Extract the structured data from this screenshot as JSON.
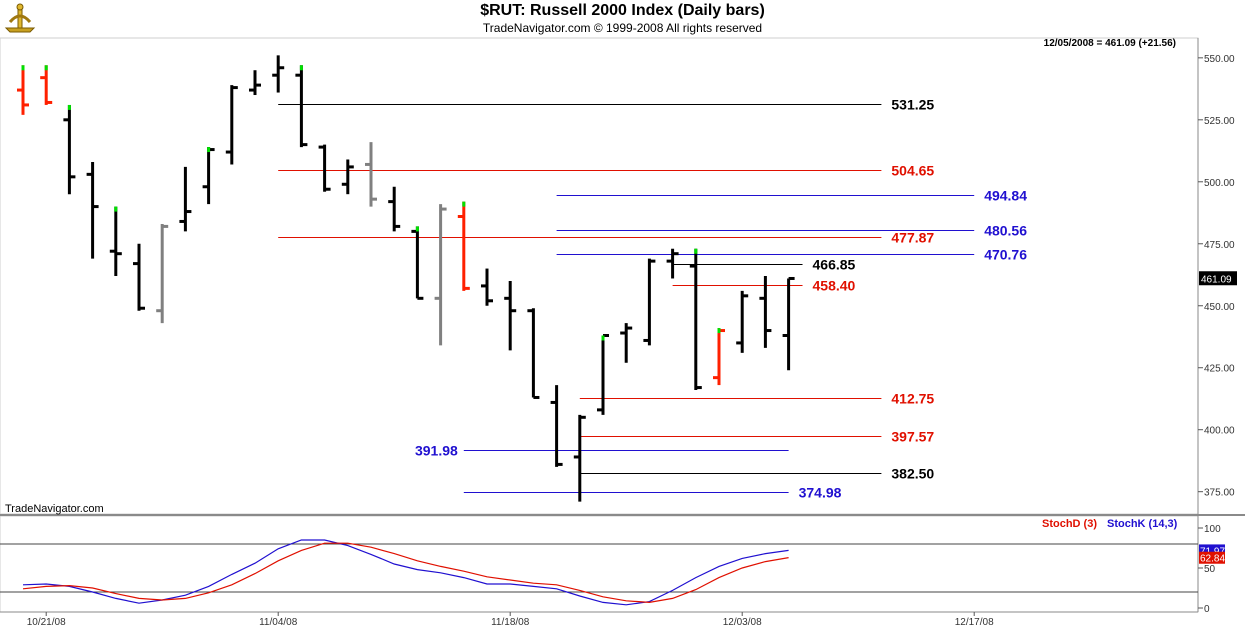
{
  "header": {
    "title": "$RUT:  Russell 2000 Index  (Daily bars)",
    "subtitle": "TradeNavigator.com © 1999-2008 All rights reserved"
  },
  "chart_data": [
    {
      "type": "ohlc",
      "readout": "12/05/2008 = 461.09 (+21.56)",
      "watermark": "TradeNavigator.com",
      "ylim": [
        366,
        558
      ],
      "y_ticks": [
        "375.00",
        "400.00",
        "425.00",
        "450.00",
        "475.00",
        "500.00",
        "525.00",
        "550.00"
      ],
      "y_tick_values": [
        375,
        400,
        425,
        450,
        475,
        500,
        525,
        550
      ],
      "last_price_label": "461.09",
      "last_price_value": 461.09,
      "colors": {
        "up": "#000000",
        "down": "#ff2000",
        "upbar_tick": "#00e000",
        "inside": "#808080",
        "blue": "#2010d0",
        "red": "#e01000",
        "black": "#000000"
      },
      "x_ticks": [
        "10/21/08",
        "11/04/08",
        "11/18/08",
        "12/03/08",
        "12/17/08"
      ],
      "x_tick_index": [
        1,
        11,
        21,
        31,
        41
      ],
      "bars": [
        {
          "i": 0,
          "o": 537,
          "h": 547,
          "l": 527,
          "c": 531,
          "color": "red",
          "tick": "green"
        },
        {
          "i": 1,
          "o": 542,
          "h": 547,
          "l": 531,
          "c": 532,
          "color": "red",
          "tick": "green"
        },
        {
          "i": 2,
          "o": 525,
          "h": 531,
          "l": 495,
          "c": 502,
          "color": "black",
          "tick": "green"
        },
        {
          "i": 3,
          "o": 503,
          "h": 508,
          "l": 469,
          "c": 490,
          "color": "black"
        },
        {
          "i": 4,
          "o": 472,
          "h": 490,
          "l": 462,
          "c": 471,
          "color": "black",
          "tick": "green"
        },
        {
          "i": 5,
          "o": 467,
          "h": 475,
          "l": 448,
          "c": 449,
          "color": "black"
        },
        {
          "i": 6,
          "o": 448,
          "h": 483,
          "l": 443,
          "c": 482,
          "color": "gray"
        },
        {
          "i": 7,
          "o": 484,
          "h": 506,
          "l": 480,
          "c": 488,
          "color": "black"
        },
        {
          "i": 8,
          "o": 498,
          "h": 514,
          "l": 491,
          "c": 513,
          "color": "black",
          "tick": "green"
        },
        {
          "i": 9,
          "o": 512,
          "h": 539,
          "l": 507,
          "c": 538,
          "color": "black"
        },
        {
          "i": 10,
          "o": 537,
          "h": 545,
          "l": 535,
          "c": 539,
          "color": "black"
        },
        {
          "i": 11,
          "o": 543,
          "h": 551,
          "l": 536,
          "c": 546,
          "color": "black"
        },
        {
          "i": 12,
          "o": 543,
          "h": 547,
          "l": 514,
          "c": 515,
          "color": "black",
          "tick": "green"
        },
        {
          "i": 13,
          "o": 514,
          "h": 515,
          "l": 496,
          "c": 497,
          "color": "black"
        },
        {
          "i": 14,
          "o": 499,
          "h": 509,
          "l": 495,
          "c": 506,
          "color": "black"
        },
        {
          "i": 15,
          "o": 507,
          "h": 516,
          "l": 490,
          "c": 493,
          "color": "gray"
        },
        {
          "i": 16,
          "o": 492,
          "h": 498,
          "l": 480,
          "c": 482,
          "color": "black"
        },
        {
          "i": 17,
          "o": 480,
          "h": 482,
          "l": 453,
          "c": 453,
          "color": "black",
          "tick": "green"
        },
        {
          "i": 18,
          "o": 453,
          "h": 491,
          "l": 434,
          "c": 489,
          "color": "gray"
        },
        {
          "i": 19,
          "o": 486,
          "h": 492,
          "l": 456,
          "c": 457,
          "color": "red",
          "tick": "green"
        },
        {
          "i": 20,
          "o": 458,
          "h": 465,
          "l": 450,
          "c": 452,
          "color": "black"
        },
        {
          "i": 21,
          "o": 453,
          "h": 460,
          "l": 432,
          "c": 448,
          "color": "black"
        },
        {
          "i": 22,
          "o": 448,
          "h": 449,
          "l": 413,
          "c": 413,
          "color": "black"
        },
        {
          "i": 23,
          "o": 411,
          "h": 418,
          "l": 385,
          "c": 386,
          "color": "black"
        },
        {
          "i": 24,
          "o": 389,
          "h": 406,
          "l": 371,
          "c": 405,
          "color": "black"
        },
        {
          "i": 25,
          "o": 408,
          "h": 438,
          "l": 406,
          "c": 438,
          "color": "black",
          "tick": "green"
        },
        {
          "i": 26,
          "o": 439,
          "h": 443,
          "l": 427,
          "c": 441,
          "color": "black"
        },
        {
          "i": 27,
          "o": 436,
          "h": 469,
          "l": 434,
          "c": 468,
          "color": "black"
        },
        {
          "i": 28,
          "o": 468,
          "h": 473,
          "l": 461,
          "c": 471,
          "color": "black"
        },
        {
          "i": 29,
          "o": 466,
          "h": 473,
          "l": 416,
          "c": 417,
          "color": "black",
          "tick": "green"
        },
        {
          "i": 30,
          "o": 421,
          "h": 441,
          "l": 418,
          "c": 440,
          "color": "red",
          "tick": "green"
        },
        {
          "i": 31,
          "o": 435,
          "h": 456,
          "l": 431,
          "c": 454,
          "color": "black"
        },
        {
          "i": 32,
          "o": 453,
          "h": 462,
          "l": 433,
          "c": 440,
          "color": "black"
        },
        {
          "i": 33,
          "o": 438,
          "h": 461,
          "l": 424,
          "c": 461,
          "color": "black"
        }
      ],
      "levels": [
        {
          "value": 531.25,
          "label": "531.25",
          "color": "black",
          "from": 11,
          "to": 37,
          "label_side": "right"
        },
        {
          "value": 504.65,
          "label": "504.65",
          "color": "red",
          "from": 11,
          "to": 37,
          "label_side": "right"
        },
        {
          "value": 494.84,
          "label": "494.84",
          "color": "blue",
          "from": 23,
          "to": 41,
          "label_side": "right"
        },
        {
          "value": 480.56,
          "label": "480.56",
          "color": "blue",
          "from": 23,
          "to": 41,
          "label_side": "right"
        },
        {
          "value": 477.87,
          "label": "477.87",
          "color": "red",
          "from": 11,
          "to": 37,
          "label_side": "right"
        },
        {
          "value": 470.76,
          "label": "470.76",
          "color": "blue",
          "from": 23,
          "to": 41,
          "label_side": "right"
        },
        {
          "value": 466.85,
          "label": "466.85",
          "color": "black",
          "from": 28,
          "to": 33.6,
          "label_side": "right"
        },
        {
          "value": 458.4,
          "label": "458.40",
          "color": "red",
          "from": 28,
          "to": 33.6,
          "label_side": "right"
        },
        {
          "value": 412.75,
          "label": "412.75",
          "color": "red",
          "from": 24,
          "to": 37,
          "label_side": "right"
        },
        {
          "value": 397.57,
          "label": "397.57",
          "color": "red",
          "from": 24,
          "to": 37,
          "label_side": "right"
        },
        {
          "value": 391.98,
          "label": "391.98",
          "color": "blue",
          "from": 19,
          "to": 33,
          "label_side": "left"
        },
        {
          "value": 382.5,
          "label": "382.50",
          "color": "black",
          "from": 24,
          "to": 37,
          "label_side": "right"
        },
        {
          "value": 374.98,
          "label": "374.98",
          "color": "blue",
          "from": 19,
          "to": 33,
          "label_side": "right"
        }
      ]
    },
    {
      "type": "line",
      "ylim": [
        -5,
        115
      ],
      "y_ticks": [
        "0",
        "50",
        "100"
      ],
      "y_tick_values": [
        0,
        50,
        100
      ],
      "hlines": [
        20,
        80
      ],
      "legend": [
        {
          "name": "StochD (3)",
          "color": "#e01000"
        },
        {
          "name": "StochK (14,3)",
          "color": "#2010d0"
        }
      ],
      "last_labels": [
        {
          "text": "71.97",
          "value": 71.97,
          "color": "#2010d0"
        },
        {
          "text": "62.84",
          "value": 62.84,
          "color": "#e01000"
        }
      ],
      "series": [
        {
          "name": "StochK (14,3)",
          "color": "#2010d0",
          "x": [
            0,
            1,
            2,
            3,
            4,
            5,
            6,
            7,
            8,
            9,
            10,
            11,
            12,
            13,
            14,
            15,
            16,
            17,
            18,
            19,
            20,
            21,
            22,
            23,
            24,
            25,
            26,
            27,
            28,
            29,
            30,
            31,
            32,
            33
          ],
          "values": [
            29,
            30,
            27,
            20,
            12,
            6,
            10,
            16,
            27,
            42,
            56,
            74,
            85,
            85,
            78,
            67,
            55,
            48,
            44,
            38,
            30,
            30,
            27,
            24,
            15,
            7,
            4,
            8,
            22,
            38,
            52,
            62,
            68,
            72
          ]
        },
        {
          "name": "StochD (3)",
          "color": "#e01000",
          "x": [
            0,
            1,
            2,
            3,
            4,
            5,
            6,
            7,
            8,
            9,
            10,
            11,
            12,
            13,
            14,
            15,
            16,
            17,
            18,
            19,
            20,
            21,
            22,
            23,
            24,
            25,
            26,
            27,
            28,
            29,
            30,
            31,
            32,
            33
          ],
          "values": [
            24,
            27,
            28,
            25,
            18,
            12,
            10,
            12,
            19,
            29,
            43,
            59,
            72,
            81,
            81,
            76,
            68,
            59,
            52,
            46,
            39,
            35,
            31,
            29,
            22,
            14,
            9,
            7,
            12,
            23,
            38,
            50,
            58,
            63
          ]
        }
      ]
    }
  ]
}
